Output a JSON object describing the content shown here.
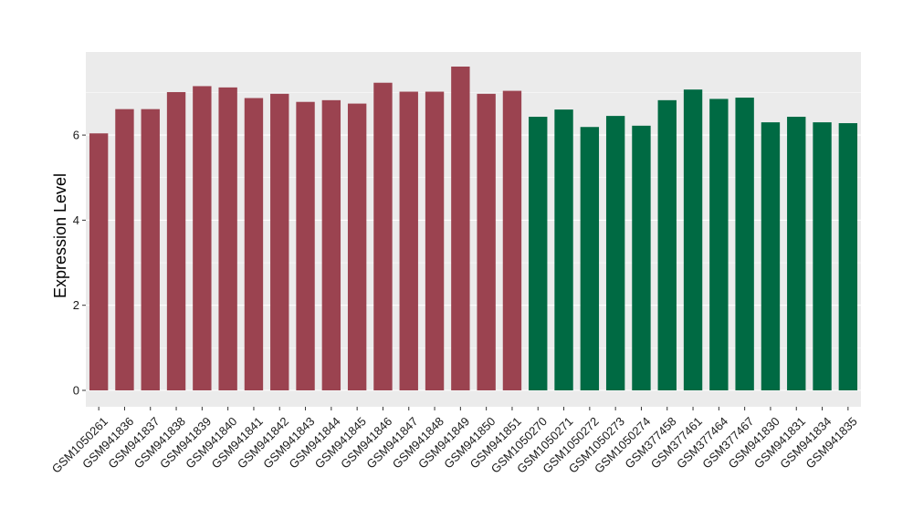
{
  "chart_data": {
    "type": "bar",
    "title": "",
    "xlabel": "",
    "ylabel": "Expression Level",
    "ylim": [
      0,
      7.95
    ],
    "y_ticks": [
      0,
      2,
      4,
      6
    ],
    "y_tick_labels": [
      "0",
      "2",
      "4",
      "6"
    ],
    "grid": true,
    "legend": "none",
    "categories": [
      "GSM1050261",
      "GSM941836",
      "GSM941837",
      "GSM941838",
      "GSM941839",
      "GSM941840",
      "GSM941841",
      "GSM941842",
      "GSM941843",
      "GSM941844",
      "GSM941845",
      "GSM941846",
      "GSM941847",
      "GSM941848",
      "GSM941849",
      "GSM941850",
      "GSM941851",
      "GSM1050270",
      "GSM1050271",
      "GSM1050272",
      "GSM1050273",
      "GSM1050274",
      "GSM377458",
      "GSM377461",
      "GSM377464",
      "GSM377467",
      "GSM941830",
      "GSM941831",
      "GSM941834",
      "GSM941835"
    ],
    "values": [
      6.04,
      6.61,
      6.61,
      7.01,
      7.15,
      7.12,
      6.87,
      6.97,
      6.78,
      6.82,
      6.74,
      7.23,
      7.02,
      7.02,
      7.61,
      6.97,
      7.04,
      6.43,
      6.6,
      6.19,
      6.45,
      6.22,
      6.82,
      7.07,
      6.85,
      6.88,
      6.3,
      6.43,
      6.3,
      6.28
    ],
    "group_index": [
      0,
      0,
      0,
      0,
      0,
      0,
      0,
      0,
      0,
      0,
      0,
      0,
      0,
      0,
      0,
      0,
      0,
      1,
      1,
      1,
      1,
      1,
      1,
      1,
      1,
      1,
      1,
      1,
      1,
      1
    ],
    "group_colors": [
      "#9b4350",
      "#006a43"
    ],
    "panel_background": "#ebebeb",
    "gridline_color": "#ffffff"
  }
}
